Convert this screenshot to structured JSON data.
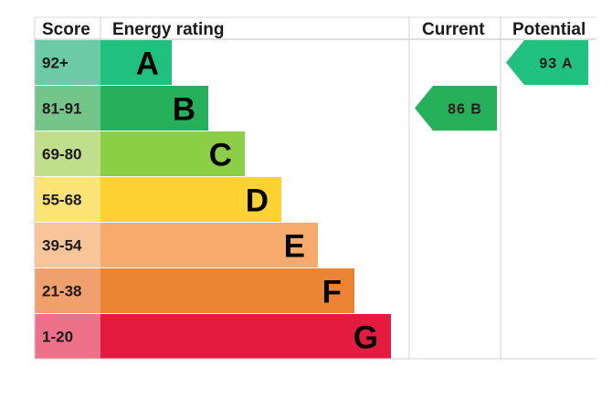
{
  "chart_data": {
    "type": "bar",
    "headers": {
      "score": "Score",
      "rating": "Energy rating",
      "current": "Current",
      "potential": "Potential"
    },
    "bands": [
      {
        "score": "92+",
        "letter": "A",
        "score_color": "#6ccba6",
        "bar_color": "#20c07e"
      },
      {
        "score": "81-91",
        "letter": "B",
        "score_color": "#74c58a",
        "bar_color": "#27b05a"
      },
      {
        "score": "69-80",
        "letter": "C",
        "score_color": "#c1de8d",
        "bar_color": "#8cce46"
      },
      {
        "score": "55-68",
        "letter": "D",
        "score_color": "#fde477",
        "bar_color": "#fdd231"
      },
      {
        "score": "39-54",
        "letter": "E",
        "score_color": "#f8c59b",
        "bar_color": "#f6ab6d"
      },
      {
        "score": "21-38",
        "letter": "F",
        "score_color": "#f0a06c",
        "bar_color": "#ec8436"
      },
      {
        "score": "1-20",
        "letter": "G",
        "score_color": "#ed7189",
        "bar_color": "#e21b3f"
      }
    ],
    "current": {
      "value": 86,
      "band": "B",
      "label": "86 B",
      "color": "#27b05a"
    },
    "potential": {
      "value": 93,
      "band": "A",
      "label": "93 A",
      "color": "#20c07e"
    }
  }
}
